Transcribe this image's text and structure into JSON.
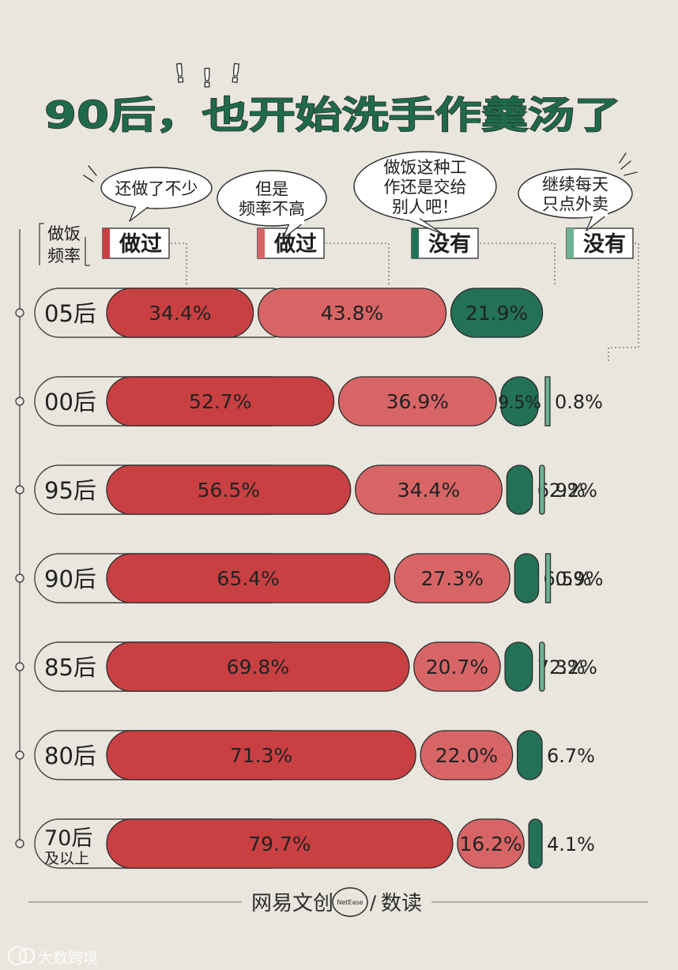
{
  "title": "90后，也开始洗手作羹汤了",
  "title_marks": [
    "!",
    "!",
    "!"
  ],
  "axis_label": [
    "做饭",
    "频率"
  ],
  "columns": [
    {
      "label": "做过",
      "bubble": [
        "还做了不少"
      ],
      "color": "#c94042"
    },
    {
      "label": "做过",
      "bubble": [
        "但是",
        "频率不高"
      ],
      "color": "#d86566"
    },
    {
      "label": "没有",
      "bubble": [
        "做饭这种工",
        "作还是交给",
        "别人吧！"
      ],
      "color": "#237157"
    },
    {
      "label": "没有",
      "bubble": [
        "继续每天",
        "只点外卖"
      ],
      "color": "#6cb394"
    }
  ],
  "chart_data": {
    "type": "bar",
    "stacked": true,
    "orientation": "horizontal",
    "categories": [
      [
        "05后"
      ],
      [
        "00后"
      ],
      [
        "95后"
      ],
      [
        "90后"
      ],
      [
        "85后"
      ],
      [
        "80后"
      ],
      [
        "70后",
        "及以上"
      ]
    ],
    "series": [
      {
        "name": "还做了不少",
        "color": "#c94042",
        "values": [
          34.4,
          52.7,
          56.5,
          65.4,
          69.8,
          71.3,
          79.7
        ],
        "labels": [
          "34.4%",
          "52.7%",
          "56.5%",
          "65.4%",
          "69.8%",
          "71.3%",
          "79.7%"
        ]
      },
      {
        "name": "但是频率不高",
        "color": "#d86566",
        "values": [
          43.8,
          36.9,
          34.4,
          27.3,
          20.7,
          22.0,
          16.2
        ],
        "labels": [
          "43.8%",
          "36.9%",
          "34.4%",
          "27.3%",
          "20.7%",
          "22.0%",
          "16.2%"
        ]
      },
      {
        "name": "做饭这种工作还是交给别人吧！",
        "color": "#237157",
        "values": [
          21.9,
          9.5,
          6.9,
          6.5,
          7.3,
          6.7,
          4.1
        ],
        "labels": [
          "21.9%",
          "9.5%",
          "6.9%",
          "6.5%",
          "7.3%",
          "6.7%",
          "4.1%"
        ]
      },
      {
        "name": "继续每天只点外卖",
        "color": "#6cb394",
        "values": [
          0,
          0.8,
          2.2,
          0.9,
          2.2,
          0,
          0
        ],
        "labels": [
          "",
          "0.8%",
          "2.2%",
          "0.9%",
          "2.2%",
          "",
          ""
        ]
      }
    ]
  },
  "footer": {
    "brand_left": "网易文创",
    "brand_badge": "NetEase",
    "separator": "/",
    "brand_right": "数读",
    "watermark": "大数跨境"
  }
}
